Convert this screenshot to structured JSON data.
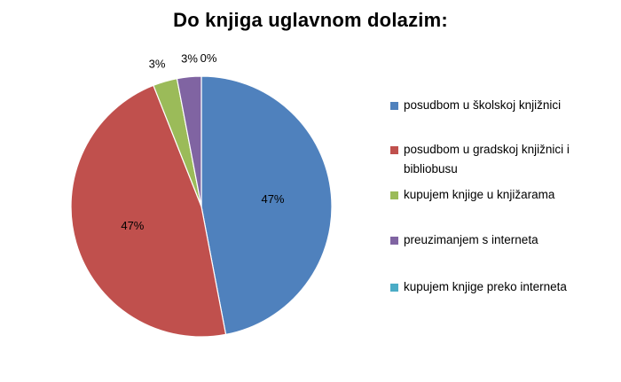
{
  "chart_data": {
    "type": "pie",
    "title": "Do knjiga uglavnom dolazim:",
    "categories": [
      "posudbom  u školskoj  knjižnici",
      "posudbom  u gradskoj knjižnici i bibliobusu",
      "kupujem knjige u knjižarama",
      "preuzimanjem s interneta",
      "kupujem knjige preko interneta"
    ],
    "values": [
      47,
      47,
      3,
      3,
      0
    ],
    "data_labels": [
      "47%",
      "47%",
      "3%",
      "3%",
      "0%"
    ],
    "colors": [
      "#4f81bd",
      "#c0504d",
      "#9bbb59",
      "#8064a2",
      "#4bacc6"
    ],
    "legend_placement": "right",
    "start_angle_deg": 0,
    "direction": "clockwise"
  }
}
